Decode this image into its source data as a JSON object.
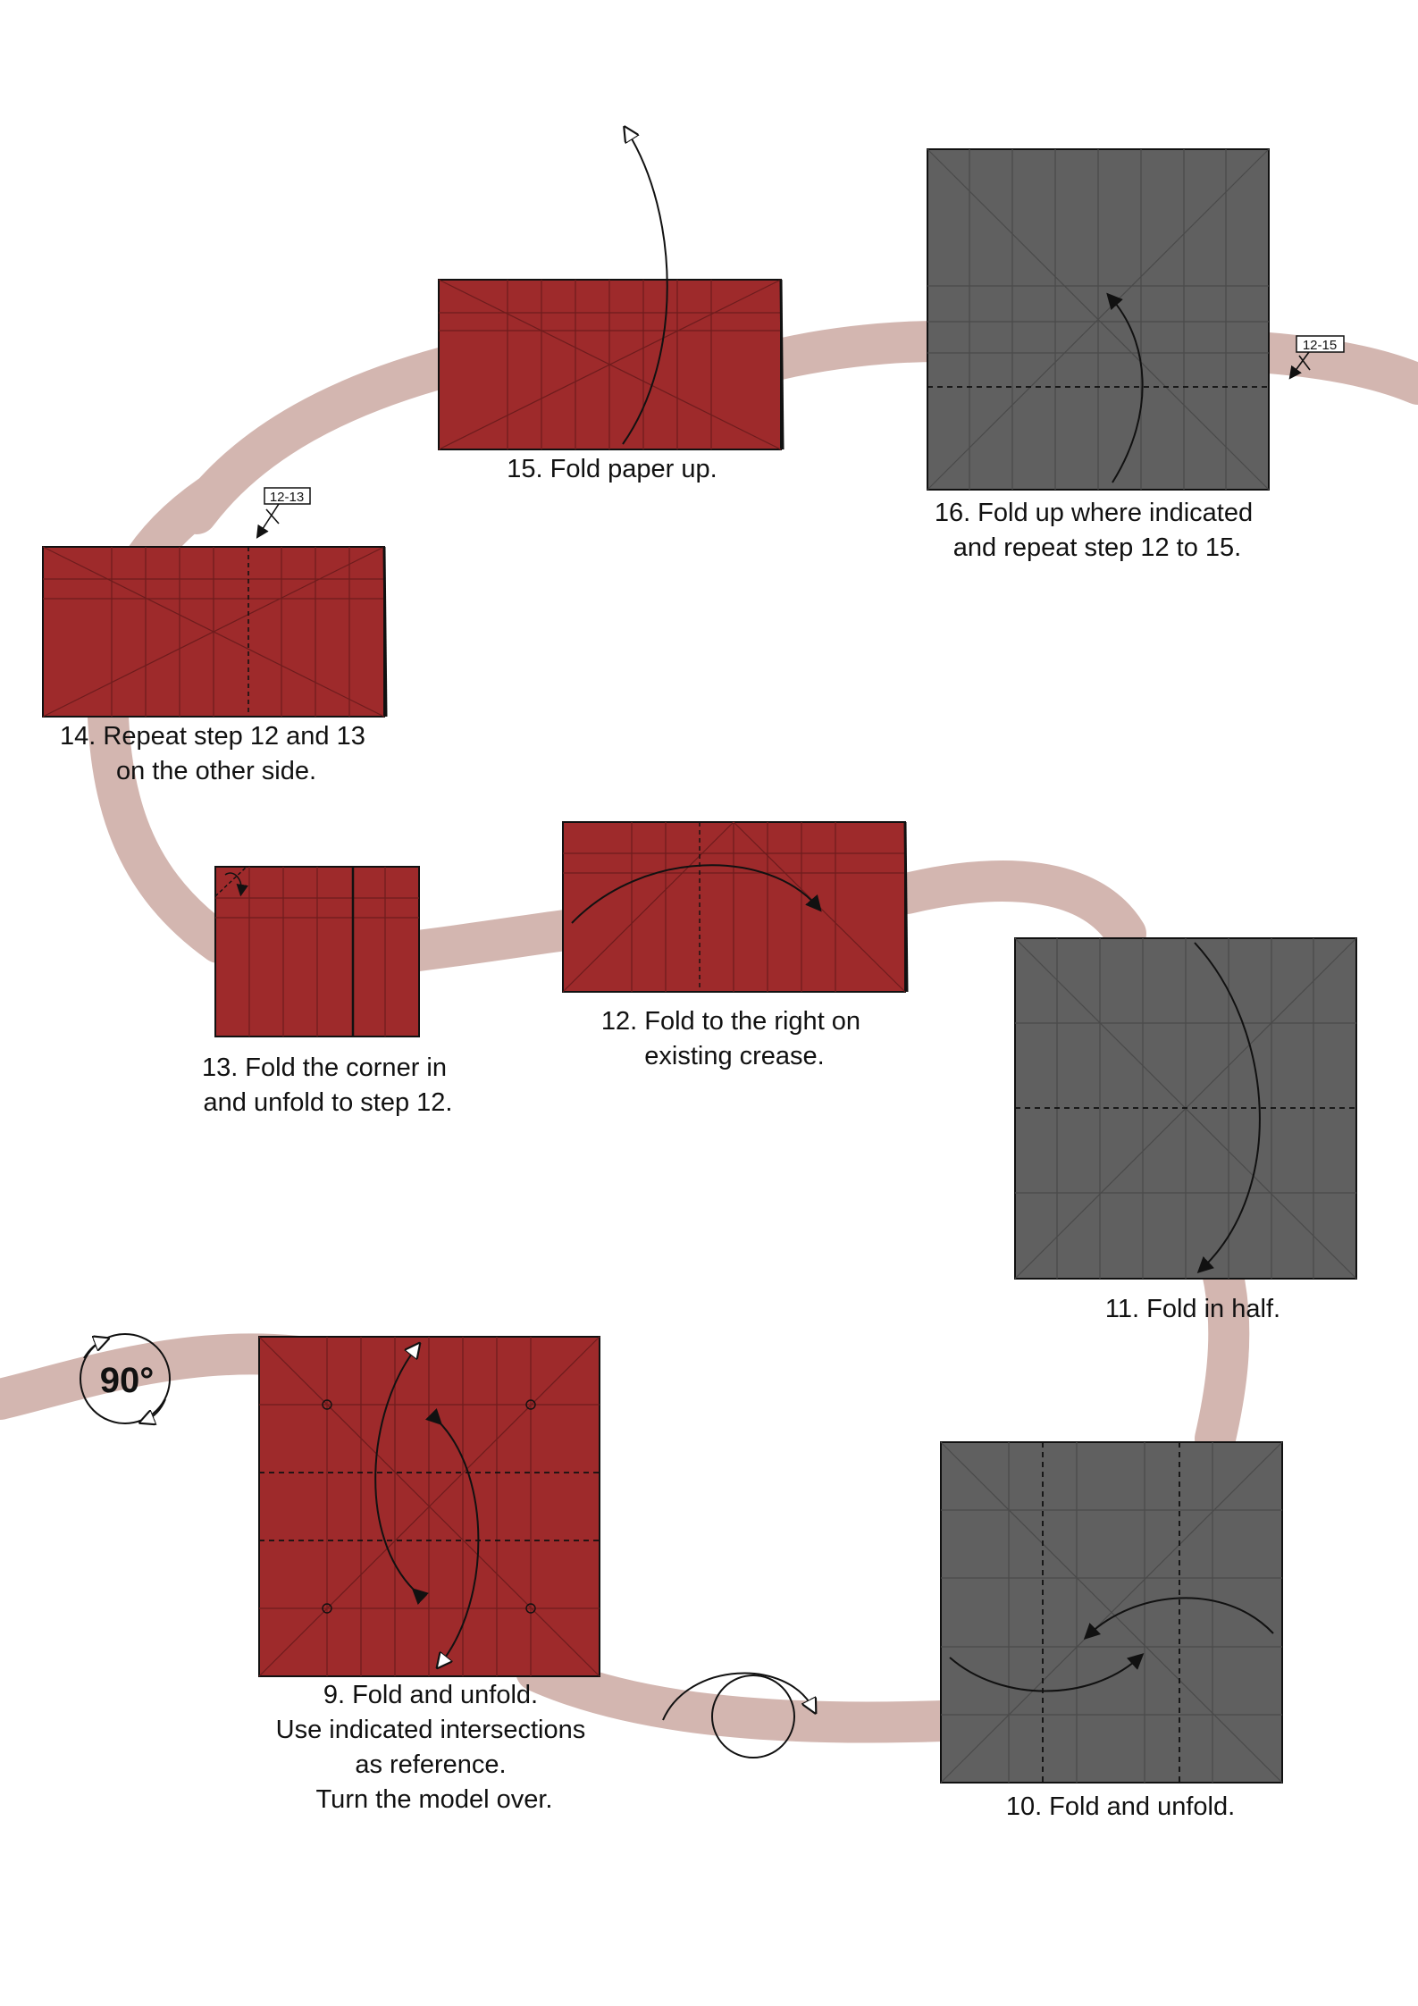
{
  "colors": {
    "path": "#d3b6b0",
    "red_paper": "#9e2a2b",
    "grey_paper": "#606060",
    "crease": "#4a4a4a",
    "outline": "#111111"
  },
  "rotation": {
    "label": "90°"
  },
  "steps": [
    {
      "id": "step-9",
      "caption": [
        "9. Fold and unfold.",
        "Use indicated intersections",
        "as reference.",
        "Turn the model over."
      ]
    },
    {
      "id": "step-10",
      "caption": [
        "10. Fold and unfold."
      ]
    },
    {
      "id": "step-11",
      "caption": [
        "11. Fold in half."
      ]
    },
    {
      "id": "step-12",
      "caption": [
        "12. Fold to the right on",
        "existing crease."
      ]
    },
    {
      "id": "step-13",
      "caption": [
        "13. Fold the corner in",
        "and unfold to step 12."
      ]
    },
    {
      "id": "step-14",
      "caption": [
        "14. Repeat step 12 and 13",
        "on the other side."
      ]
    },
    {
      "id": "step-15",
      "caption": [
        "15. Fold paper up."
      ]
    },
    {
      "id": "step-16",
      "caption": [
        "16. Fold up where indicated",
        "and repeat step 12 to 15."
      ]
    }
  ],
  "repeat_markers": [
    {
      "id": "repeat-12-13",
      "label": "12-13"
    },
    {
      "id": "repeat-12-15",
      "label": "12-15"
    }
  ]
}
